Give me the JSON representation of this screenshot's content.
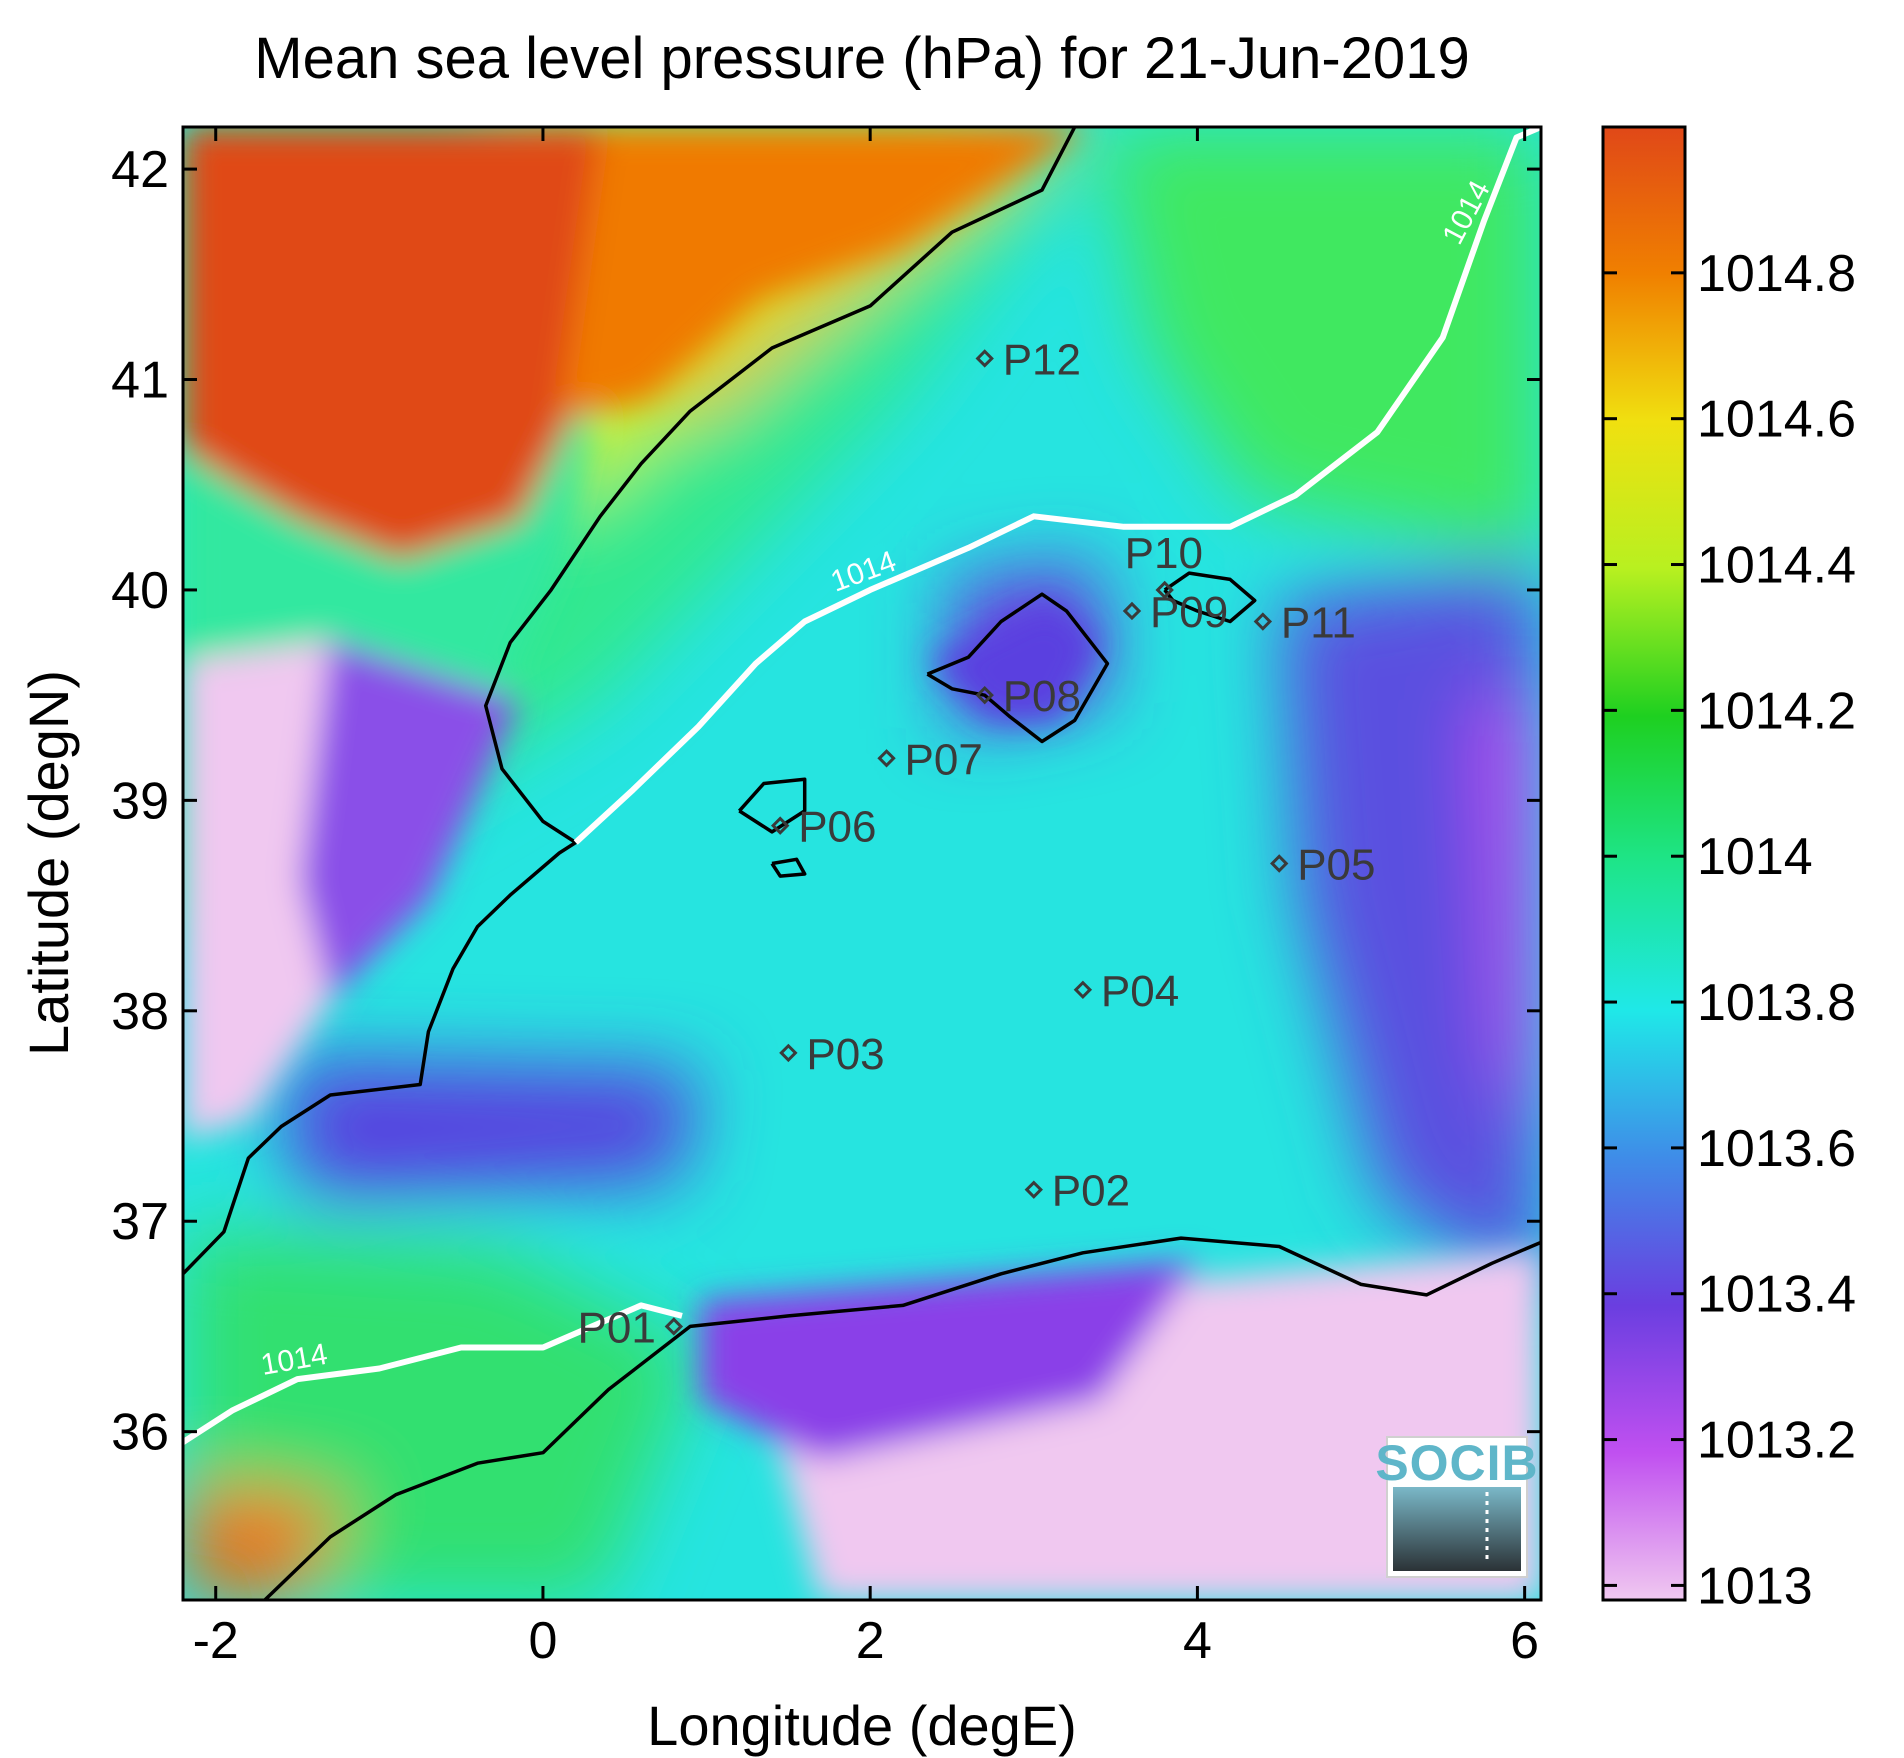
{
  "chart_data": {
    "type": "heatmap",
    "title": "Mean sea level pressure (hPa) for 21-Jun-2019",
    "xlabel": "Longitude (degE)",
    "ylabel": "Latitude (degN)",
    "xlim": [
      -2.2,
      6.1
    ],
    "ylim": [
      35.2,
      42.2
    ],
    "xticks": [
      -2,
      0,
      2,
      4,
      6
    ],
    "yticks": [
      36,
      37,
      38,
      39,
      40,
      41,
      42
    ],
    "colorbar": {
      "range": [
        1012.98,
        1015.0
      ],
      "ticks": [
        1013,
        1013.2,
        1013.4,
        1013.6,
        1013.8,
        1014,
        1014.2,
        1014.4,
        1014.6,
        1014.8
      ],
      "colors": [
        "#f0c8f0",
        "#c050f0",
        "#6a3ee0",
        "#3f8ce8",
        "#1fe8e8",
        "#1ee58a",
        "#1ed020",
        "#b8f020",
        "#f0e010",
        "#f08000",
        "#e04818"
      ]
    },
    "contour_levels": [
      1014
    ],
    "contour_labels": [
      "1014",
      "1014",
      "1014"
    ],
    "stations": [
      {
        "name": "P01",
        "lon": 0.8,
        "lat": 36.5
      },
      {
        "name": "P02",
        "lon": 3.0,
        "lat": 37.15
      },
      {
        "name": "P03",
        "lon": 1.5,
        "lat": 37.8
      },
      {
        "name": "P04",
        "lon": 3.3,
        "lat": 38.1
      },
      {
        "name": "P05",
        "lon": 4.5,
        "lat": 38.7
      },
      {
        "name": "P06",
        "lon": 1.45,
        "lat": 38.88
      },
      {
        "name": "P07",
        "lon": 2.1,
        "lat": 39.2
      },
      {
        "name": "P08",
        "lon": 2.7,
        "lat": 39.5
      },
      {
        "name": "P09",
        "lon": 3.6,
        "lat": 39.9
      },
      {
        "name": "P10",
        "lon": 3.8,
        "lat": 40.0
      },
      {
        "name": "P11",
        "lon": 4.4,
        "lat": 39.85
      },
      {
        "name": "P12",
        "lon": 2.7,
        "lat": 41.1
      }
    ],
    "coastline": {
      "iberia": [
        [
          -2.2,
          36.75
        ],
        [
          -1.95,
          36.95
        ],
        [
          -1.8,
          37.3
        ],
        [
          -1.6,
          37.45
        ],
        [
          -1.3,
          37.6
        ],
        [
          -0.75,
          37.65
        ],
        [
          -0.7,
          37.9
        ],
        [
          -0.55,
          38.2
        ],
        [
          -0.4,
          38.4
        ],
        [
          -0.2,
          38.55
        ],
        [
          0.1,
          38.75
        ],
        [
          0.2,
          38.8
        ],
        [
          0.0,
          38.9
        ],
        [
          -0.25,
          39.15
        ],
        [
          -0.35,
          39.45
        ],
        [
          -0.2,
          39.75
        ],
        [
          0.05,
          40.0
        ],
        [
          0.35,
          40.35
        ],
        [
          0.6,
          40.6
        ],
        [
          0.9,
          40.85
        ],
        [
          1.4,
          41.15
        ],
        [
          2.0,
          41.35
        ],
        [
          2.5,
          41.7
        ],
        [
          3.05,
          41.9
        ],
        [
          3.25,
          42.2
        ]
      ],
      "africa": [
        [
          -1.7,
          35.2
        ],
        [
          -1.3,
          35.5
        ],
        [
          -0.9,
          35.7
        ],
        [
          -0.4,
          35.85
        ],
        [
          0.0,
          35.9
        ],
        [
          0.4,
          36.2
        ],
        [
          0.9,
          36.5
        ],
        [
          1.5,
          36.55
        ],
        [
          2.2,
          36.6
        ],
        [
          2.8,
          36.75
        ],
        [
          3.3,
          36.85
        ],
        [
          3.9,
          36.92
        ],
        [
          4.5,
          36.88
        ],
        [
          5.0,
          36.7
        ],
        [
          5.4,
          36.65
        ],
        [
          5.8,
          36.8
        ],
        [
          6.1,
          36.9
        ]
      ],
      "mallorca": [
        [
          2.35,
          39.6
        ],
        [
          2.6,
          39.68
        ],
        [
          2.8,
          39.85
        ],
        [
          3.05,
          39.98
        ],
        [
          3.2,
          39.9
        ],
        [
          3.35,
          39.75
        ],
        [
          3.45,
          39.65
        ],
        [
          3.25,
          39.38
        ],
        [
          3.05,
          39.28
        ],
        [
          2.85,
          39.4
        ],
        [
          2.7,
          39.5
        ],
        [
          2.5,
          39.53
        ],
        [
          2.35,
          39.6
        ]
      ],
      "menorca": [
        [
          3.8,
          40.0
        ],
        [
          3.95,
          40.08
        ],
        [
          4.2,
          40.05
        ],
        [
          4.35,
          39.95
        ],
        [
          4.2,
          39.85
        ],
        [
          4.0,
          39.9
        ],
        [
          3.85,
          39.95
        ],
        [
          3.8,
          40.0
        ]
      ],
      "ibiza": [
        [
          1.2,
          38.95
        ],
        [
          1.35,
          39.08
        ],
        [
          1.6,
          39.1
        ],
        [
          1.6,
          38.95
        ],
        [
          1.4,
          38.85
        ],
        [
          1.2,
          38.95
        ]
      ],
      "formentera": [
        [
          1.4,
          38.7
        ],
        [
          1.55,
          38.72
        ],
        [
          1.6,
          38.65
        ],
        [
          1.45,
          38.64
        ],
        [
          1.4,
          38.7
        ]
      ]
    },
    "contour_1014": {
      "line_a": [
        [
          -2.2,
          35.95
        ],
        [
          -1.9,
          36.1
        ],
        [
          -1.5,
          36.25
        ],
        [
          -1.0,
          36.3
        ],
        [
          -0.5,
          36.4
        ],
        [
          0.0,
          36.4
        ],
        [
          0.3,
          36.5
        ],
        [
          0.6,
          36.6
        ],
        [
          0.85,
          36.55
        ]
      ],
      "line_b": [
        [
          0.2,
          38.8
        ],
        [
          0.55,
          39.05
        ],
        [
          0.95,
          39.35
        ],
        [
          1.3,
          39.65
        ],
        [
          1.6,
          39.85
        ],
        [
          2.0,
          40.0
        ],
        [
          2.6,
          40.2
        ],
        [
          3.0,
          40.35
        ],
        [
          3.55,
          40.3
        ],
        [
          4.2,
          40.3
        ],
        [
          4.6,
          40.45
        ],
        [
          5.1,
          40.75
        ],
        [
          5.5,
          41.2
        ],
        [
          5.75,
          41.75
        ],
        [
          5.95,
          42.15
        ],
        [
          6.1,
          42.2
        ]
      ]
    }
  },
  "logo": {
    "text": "SOCIB"
  }
}
